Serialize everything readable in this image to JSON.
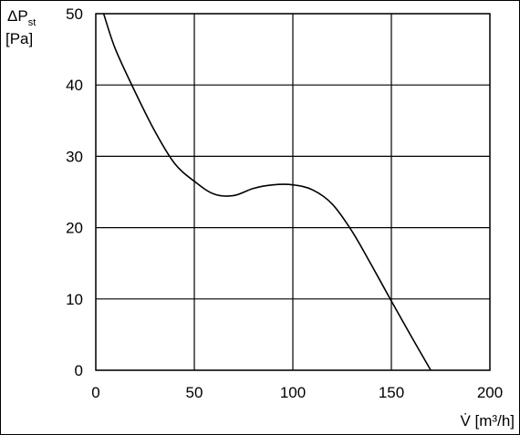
{
  "chart_data": {
    "type": "line",
    "title": "",
    "ylabel_symbol": "ΔP",
    "ylabel_subscript": "st",
    "ylabel_unit": "[Pa]",
    "xlabel": "V̇ [m³/h]",
    "xlim": [
      0,
      200
    ],
    "ylim": [
      0,
      50
    ],
    "xticks": [
      0,
      50,
      100,
      150,
      200
    ],
    "yticks": [
      0,
      10,
      20,
      30,
      40,
      50
    ],
    "grid": true,
    "legend": "none",
    "line_color": "#000000",
    "series": [
      {
        "x": [
          4,
          10,
          20,
          30,
          40,
          50,
          60,
          70,
          80,
          90,
          100,
          110,
          120,
          130,
          140,
          150,
          160,
          170
        ],
        "y": [
          50,
          45,
          39,
          33.5,
          29,
          26.5,
          24.7,
          24.5,
          25.5,
          26,
          26,
          25.3,
          23.3,
          19.5,
          14.7,
          9.7,
          4.8,
          0
        ]
      }
    ]
  }
}
